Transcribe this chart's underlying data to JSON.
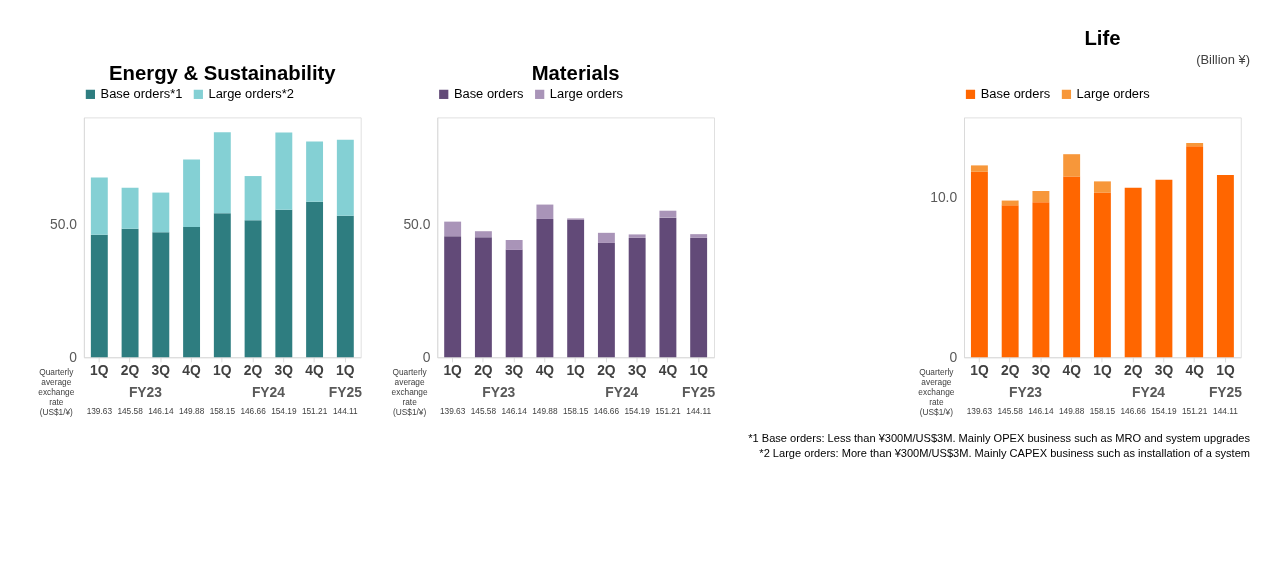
{
  "chart_data": [
    {
      "type": "bar",
      "title": "Energy & Sustainability",
      "stacked": true,
      "legend": "top",
      "grid": false,
      "categories": [
        "1Q",
        "2Q",
        "3Q",
        "4Q",
        "1Q",
        "2Q",
        "3Q",
        "4Q",
        "1Q"
      ],
      "series": [
        {
          "name": "Base orders*1",
          "color": "#2e7d80",
          "values": [
            46.0,
            48.2,
            46.9,
            48.9,
            54.0,
            51.4,
            55.4,
            58.4,
            53.1
          ]
        },
        {
          "name": "Large orders*2",
          "color": "#84d0d4",
          "values": [
            21.5,
            15.4,
            14.9,
            25.3,
            30.4,
            16.6,
            28.9,
            22.6,
            28.5
          ]
        }
      ],
      "ylim": [
        0,
        90
      ],
      "yticks": [
        0,
        {
          "value": 50,
          "label": "50.0"
        }
      ],
      "annotations": [
        "Quarterly average exchange rate (US$1/¥)",
        "139.63",
        "145.58",
        "146.14",
        "149.88",
        "158.15",
        "146.66",
        "154.19",
        "151.21",
        "144.11",
        "FY23",
        "FY24",
        "FY25"
      ]
    },
    {
      "type": "bar",
      "title": "Materials",
      "stacked": true,
      "legend": "top",
      "grid": false,
      "categories": [
        "1Q",
        "2Q",
        "3Q",
        "4Q",
        "1Q",
        "2Q",
        "3Q",
        "4Q",
        "1Q"
      ],
      "series": [
        {
          "name": "Base orders",
          "color": "#624a78",
          "values": [
            45.4,
            45.0,
            40.3,
            51.9,
            51.7,
            42.9,
            44.8,
            52.4,
            44.8
          ]
        },
        {
          "name": "Large orders",
          "color": "#a994b8",
          "values": [
            5.5,
            2.3,
            3.7,
            5.4,
            0.4,
            3.8,
            1.3,
            2.6,
            1.4
          ]
        }
      ],
      "ylim": [
        0,
        90
      ],
      "yticks": [
        0,
        {
          "value": 50,
          "label": "50.0"
        }
      ],
      "annotations": [
        "Quarterly average exchange rate (US$1/¥)",
        "139.63",
        "145.58",
        "146.14",
        "149.88",
        "158.15",
        "146.66",
        "154.19",
        "151.21",
        "144.11",
        "FY23",
        "FY24",
        "FY25"
      ]
    },
    {
      "type": "bar",
      "title": "Life",
      "stacked": true,
      "legend": "top",
      "grid": false,
      "categories": [
        "1Q",
        "2Q",
        "3Q",
        "4Q",
        "1Q",
        "2Q",
        "3Q",
        "4Q",
        "1Q"
      ],
      "series": [
        {
          "name": "Base orders",
          "color": "#ff6600",
          "values": [
            11.6,
            9.5,
            9.7,
            11.3,
            10.3,
            10.6,
            11.1,
            13.2,
            11.4
          ]
        },
        {
          "name": "Large orders",
          "color": "#f7973a",
          "values": [
            0.4,
            0.3,
            0.7,
            1.4,
            0.7,
            0.0,
            0.0,
            0.2,
            0.0
          ]
        }
      ],
      "ylim": [
        0,
        15
      ],
      "yticks": [
        0,
        {
          "value": 10,
          "label": "10.0"
        }
      ],
      "annotations": [
        "Quarterly average exchange rate (US$1/¥)",
        "139.63",
        "145.58",
        "146.14",
        "149.88",
        "158.15",
        "146.66",
        "154.19",
        "151.21",
        "144.11",
        "FY23",
        "FY24",
        "FY25",
        "(Billion ¥)",
        "*1 Base orders:  Less than ¥300M/US$3M. Mainly OPEX business such as MRO and system upgrades",
        "*2 Large orders: More than ¥300M/US$3M. Mainly CAPEX business such as installation of a system"
      ]
    }
  ]
}
